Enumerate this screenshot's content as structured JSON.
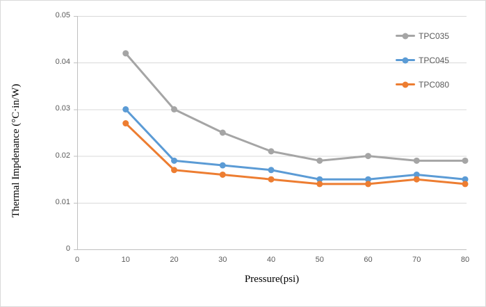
{
  "chart_data": {
    "type": "line",
    "x": [
      10,
      20,
      30,
      40,
      50,
      60,
      70,
      80
    ],
    "series": [
      {
        "name": "TPC035",
        "color": "#A5A5A5",
        "values": [
          0.042,
          0.03,
          0.025,
          0.021,
          0.019,
          0.02,
          0.019,
          0.019
        ]
      },
      {
        "name": "TPC045",
        "color": "#5B9BD5",
        "values": [
          0.03,
          0.019,
          0.018,
          0.017,
          0.015,
          0.015,
          0.016,
          0.015
        ]
      },
      {
        "name": "TPC080",
        "color": "#ED7D31",
        "values": [
          0.027,
          0.017,
          0.016,
          0.015,
          0.014,
          0.014,
          0.015,
          0.014
        ]
      }
    ],
    "xlabel": "Pressure(psi)",
    "ylabel": "Thermal Impdenance (°C·in/W)",
    "xlim": [
      0,
      80
    ],
    "ylim": [
      0,
      0.05
    ],
    "x_ticks": [
      {
        "v": 0,
        "label": "0"
      },
      {
        "v": 10,
        "label": "10"
      },
      {
        "v": 20,
        "label": "20"
      },
      {
        "v": 30,
        "label": "30"
      },
      {
        "v": 40,
        "label": "40"
      },
      {
        "v": 50,
        "label": "50"
      },
      {
        "v": 60,
        "label": "60"
      },
      {
        "v": 70,
        "label": "70"
      },
      {
        "v": 80,
        "label": "80"
      }
    ],
    "y_ticks": [
      {
        "v": 0.0,
        "label": "0"
      },
      {
        "v": 0.01,
        "label": "0.01"
      },
      {
        "v": 0.02,
        "label": "0.02"
      },
      {
        "v": 0.03,
        "label": "0.03"
      },
      {
        "v": 0.04,
        "label": "0.04"
      },
      {
        "v": 0.05,
        "label": "0.05"
      }
    ],
    "grid": true,
    "legend_position": "top-right-inside",
    "style": {
      "grid_color": "#D9D9D9",
      "axis_color": "#BFBFBF",
      "tick_label_color": "#595959",
      "marker": "circle",
      "line_width": 3
    }
  }
}
